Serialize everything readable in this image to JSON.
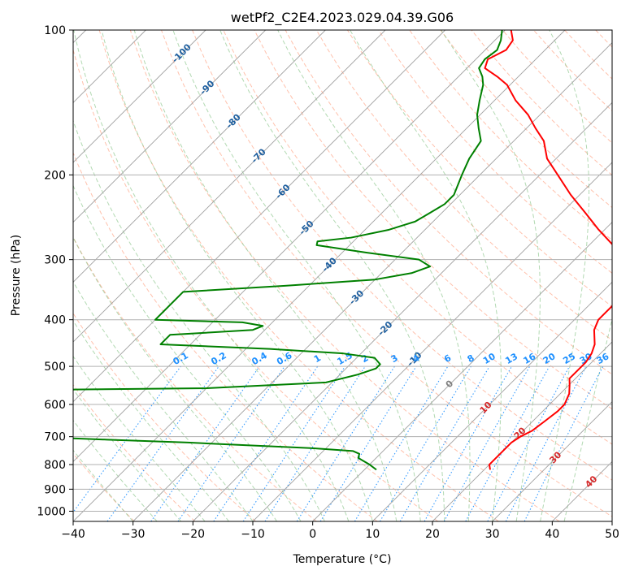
{
  "chart_data": {
    "type": "line",
    "subtype": "skew-t log-p diagram",
    "title": "wetPf2_C2E4.2023.029.04.39.G06",
    "xlabel": "Temperature (°C)",
    "ylabel": "Pressure (hPa)",
    "xlim": [
      -40,
      50
    ],
    "ylim": [
      1050,
      100
    ],
    "x_ticks": [
      -40,
      -30,
      -20,
      -10,
      0,
      10,
      20,
      30,
      40,
      50
    ],
    "y_ticks": [
      100,
      200,
      300,
      400,
      500,
      600,
      700,
      800,
      900,
      1000
    ],
    "grid": true,
    "colors": {
      "temperature": "#ff0000",
      "dewpoint": "#008000",
      "isotherm": "#a0a0a0",
      "dry_adiabat": "#ff9f80",
      "moist_adiabat": "#7fc07f",
      "mixing_ratio": "#1e90ff",
      "isotherm_label": "#1f5f9f",
      "dry_adiabat_label": "#d62728",
      "zero_isotherm_label": "#808080"
    },
    "isotherm_labels": [
      "-100",
      "-90",
      "-80",
      "-70",
      "-60",
      "-50",
      "-40",
      "-30",
      "-20",
      "-10",
      "0"
    ],
    "dry_adiabat_labels": [
      "10",
      "20",
      "30",
      "40"
    ],
    "mixing_ratio_labels": [
      "0.1",
      "0.2",
      "0.4",
      "0.6",
      "1",
      "1.5",
      "2",
      "3",
      "4",
      "6",
      "8",
      "10",
      "13",
      "16",
      "20",
      "25",
      "30",
      "36"
    ],
    "series": [
      {
        "name": "Temperature",
        "points": [
          [
            820,
            21.0
          ],
          [
            800,
            20.0
          ],
          [
            750,
            20.0
          ],
          [
            720,
            20.0
          ],
          [
            700,
            20.5
          ],
          [
            680,
            21.5
          ],
          [
            650,
            22.0
          ],
          [
            620,
            22.5
          ],
          [
            600,
            22.5
          ],
          [
            570,
            21.5
          ],
          [
            545,
            20.0
          ],
          [
            530,
            19.0
          ],
          [
            510,
            19.0
          ],
          [
            490,
            19.0
          ],
          [
            470,
            18.5
          ],
          [
            450,
            17.5
          ],
          [
            420,
            15.0
          ],
          [
            400,
            14.0
          ],
          [
            385,
            14.0
          ],
          [
            370,
            14.0
          ],
          [
            355,
            14.5
          ],
          [
            340,
            13.5
          ],
          [
            320,
            11.0
          ],
          [
            300,
            8.0
          ],
          [
            280,
            4.0
          ],
          [
            260,
            -1.0
          ],
          [
            240,
            -6.0
          ],
          [
            220,
            -11.5
          ],
          [
            200,
            -17.0
          ],
          [
            185,
            -21.5
          ],
          [
            170,
            -25.0
          ],
          [
            160,
            -28.5
          ],
          [
            150,
            -32.0
          ],
          [
            140,
            -36.5
          ],
          [
            130,
            -40.5
          ],
          [
            125,
            -43.5
          ],
          [
            120,
            -47.0
          ],
          [
            115,
            -48.0
          ],
          [
            110,
            -46.5
          ],
          [
            105,
            -47.0
          ],
          [
            100,
            -49.0
          ]
        ]
      },
      {
        "name": "Dewpoint",
        "points": [
          [
            820,
            2.0
          ],
          [
            800,
            0.0
          ],
          [
            775,
            -3.0
          ],
          [
            760,
            -3.5
          ],
          [
            750,
            -5.0
          ],
          [
            740,
            -12.0
          ],
          [
            720,
            -34.0
          ],
          [
            710,
            -48.0
          ],
          [
            700,
            -62.0
          ],
          [
            600,
            -70.0
          ],
          [
            560,
            -70.0
          ],
          [
            555,
            -40.0
          ],
          [
            540,
            -21.0
          ],
          [
            520,
            -17.0
          ],
          [
            505,
            -15.0
          ],
          [
            495,
            -15.0
          ],
          [
            480,
            -17.0
          ],
          [
            470,
            -23.0
          ],
          [
            460,
            -36.0
          ],
          [
            450,
            -55.0
          ],
          [
            430,
            -55.0
          ],
          [
            420,
            -42.0
          ],
          [
            412,
            -41.0
          ],
          [
            405,
            -45.0
          ],
          [
            400,
            -60.0
          ],
          [
            350,
            -60.0
          ],
          [
            340,
            -44.0
          ],
          [
            330,
            -30.0
          ],
          [
            320,
            -25.0
          ],
          [
            310,
            -23.0
          ],
          [
            300,
            -26.0
          ],
          [
            290,
            -36.0
          ],
          [
            280,
            -45.5
          ],
          [
            275,
            -46.0
          ],
          [
            270,
            -41.0
          ],
          [
            260,
            -36.0
          ],
          [
            250,
            -33.0
          ],
          [
            240,
            -32.0
          ],
          [
            230,
            -31.0
          ],
          [
            220,
            -31.0
          ],
          [
            200,
            -33.0
          ],
          [
            185,
            -34.5
          ],
          [
            170,
            -35.5
          ],
          [
            160,
            -38.0
          ],
          [
            150,
            -40.5
          ],
          [
            140,
            -42.5
          ],
          [
            130,
            -44.5
          ],
          [
            125,
            -46.0
          ],
          [
            120,
            -48.0
          ],
          [
            115,
            -48.5
          ],
          [
            110,
            -48.0
          ],
          [
            105,
            -49.0
          ],
          [
            100,
            -50.5
          ]
        ]
      }
    ]
  }
}
